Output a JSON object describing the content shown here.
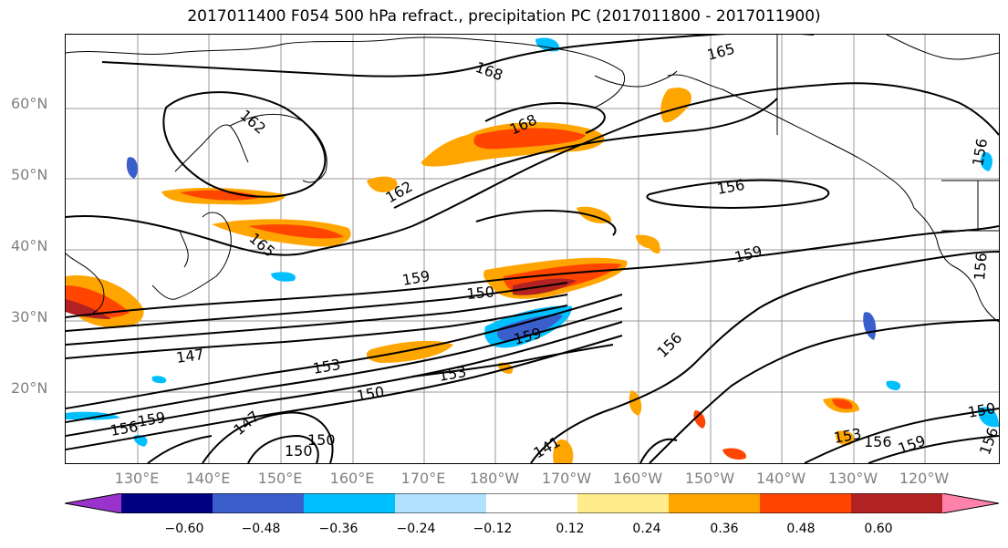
{
  "title": "2017011400 F054 500 hPa refract., precipitation PC (2017011800 - 2017011900)",
  "map": {
    "lat_labels": [
      "60°N",
      "50°N",
      "40°N",
      "30°N",
      "20°N"
    ],
    "lon_labels": [
      "130°E",
      "140°E",
      "150°E",
      "160°E",
      "170°E",
      "180°W",
      "170°W",
      "160°W",
      "150°W",
      "140°W",
      "130°W",
      "120°W"
    ],
    "contour_labels": [
      "168",
      "165",
      "162",
      "168",
      "162",
      "156",
      "165",
      "159",
      "159",
      "150",
      "147",
      "153",
      "159",
      "153",
      "150",
      "156",
      "159",
      "156",
      "150",
      "147",
      "141",
      "150",
      "153",
      "156",
      "159",
      "150",
      "156",
      "156",
      "156"
    ]
  },
  "colorbar": {
    "colors": [
      "#9933cc",
      "#000080",
      "#3a5fcd",
      "#00bfff",
      "#b0e2ff",
      "#ffffff",
      "#ffec8b",
      "#ffa500",
      "#ff4500",
      "#b22222",
      "#ff82ab"
    ],
    "ticks": [
      "−0.60",
      "−0.48",
      "−0.36",
      "−0.24",
      "−0.12",
      "0.12",
      "0.24",
      "0.36",
      "0.48",
      "0.60"
    ]
  }
}
